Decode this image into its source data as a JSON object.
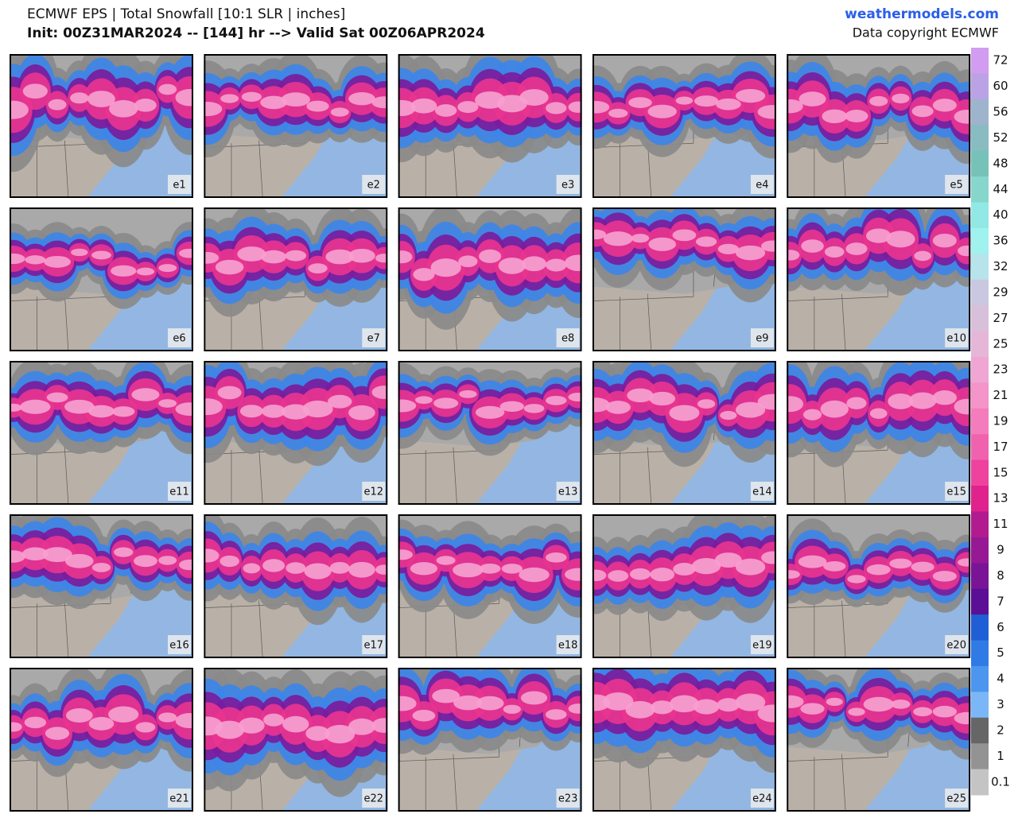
{
  "header": {
    "title": "ECMWF EPS | Total Snowfall [10:1 SLR | inches]",
    "subtitle": "Init: 00Z31MAR2024 -- [144] hr --> Valid Sat 00Z06APR2024",
    "site": "weathermodels.com",
    "copyright": "Data copyright ECMWF"
  },
  "panels": [
    "e1",
    "e2",
    "e3",
    "e4",
    "e5",
    "e6",
    "e7",
    "e8",
    "e9",
    "e10",
    "e11",
    "e12",
    "e13",
    "e14",
    "e15",
    "e16",
    "e17",
    "e18",
    "e19",
    "e20",
    "e21",
    "e22",
    "e23",
    "e24",
    "e25"
  ],
  "colorbar": {
    "levels": [
      72,
      60,
      56,
      52,
      48,
      44,
      40,
      36,
      32,
      29,
      27,
      25,
      23,
      21,
      19,
      17,
      15,
      13,
      11,
      9,
      8,
      7,
      6,
      5,
      4,
      3,
      2,
      1,
      0.1
    ],
    "colors": [
      "#d29cf0",
      "#bba2e4",
      "#9db4cc",
      "#88bcc0",
      "#77c2b8",
      "#86d6cc",
      "#92e8e4",
      "#a0f2ee",
      "#b6e4ea",
      "#c9c8e0",
      "#d8c0da",
      "#e6b6d8",
      "#efa6d2",
      "#f494c8",
      "#f47cbc",
      "#f062ae",
      "#ee429e",
      "#e0228c",
      "#b21b8f",
      "#971894",
      "#7a1496",
      "#5a0f96",
      "#1f5fd6",
      "#307ae6",
      "#4c96f0",
      "#7bb7f7",
      "#666666",
      "#939393",
      "#c4c4c4"
    ]
  }
}
